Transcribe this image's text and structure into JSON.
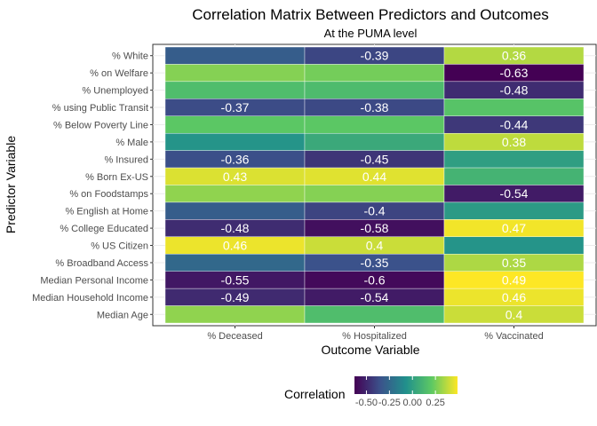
{
  "chart_data": {
    "type": "heatmap",
    "title": "Correlation Matrix Between Predictors and Outcomes",
    "subtitle": "At the PUMA level",
    "xlabel": "Outcome Variable",
    "ylabel": "Predictor Variable",
    "columns": [
      "% Deceased",
      "% Hospitalized",
      "% Vaccinated"
    ],
    "rows": [
      "% White",
      "% on Welfare",
      "% Unemployed",
      "% using Public Transit",
      "% Below Poverty Line",
      "% Male",
      "% Insured",
      "% Born Ex-US",
      "% on Foodstamps",
      "% English at Home",
      "% College Educated",
      "% US Citizen",
      "% Broadband Access",
      "Median Personal Income",
      "Median Household Income",
      "Median Age"
    ],
    "values": [
      [
        -0.3,
        -0.39,
        0.36
      ],
      [
        0.28,
        0.25,
        -0.63
      ],
      [
        0.15,
        0.14,
        -0.48
      ],
      [
        -0.37,
        -0.38,
        0.18
      ],
      [
        0.2,
        0.2,
        -0.44
      ],
      [
        -0.05,
        0.05,
        0.38
      ],
      [
        -0.36,
        -0.45,
        0.0
      ],
      [
        0.43,
        0.44,
        0.1
      ],
      [
        0.3,
        0.28,
        -0.54
      ],
      [
        -0.3,
        -0.4,
        -0.02
      ],
      [
        -0.48,
        -0.58,
        0.47
      ],
      [
        0.46,
        0.4,
        -0.05
      ],
      [
        -0.25,
        -0.35,
        0.35
      ],
      [
        -0.55,
        -0.6,
        0.49
      ],
      [
        -0.49,
        -0.54,
        0.46
      ],
      [
        0.3,
        0.15,
        0.4
      ]
    ],
    "labels": [
      [
        "",
        "-0.39",
        "0.36"
      ],
      [
        "",
        "",
        "-0.63"
      ],
      [
        "",
        "",
        "-0.48"
      ],
      [
        "-0.37",
        "-0.38",
        ""
      ],
      [
        "",
        "",
        "-0.44"
      ],
      [
        "",
        "",
        "0.38"
      ],
      [
        "-0.36",
        "-0.45",
        ""
      ],
      [
        "0.43",
        "0.44",
        ""
      ],
      [
        "",
        "",
        "-0.54"
      ],
      [
        "",
        "-0.4",
        ""
      ],
      [
        "-0.48",
        "-0.58",
        "0.47"
      ],
      [
        "0.46",
        "0.4",
        ""
      ],
      [
        "",
        "-0.35",
        "0.35"
      ],
      [
        "-0.55",
        "-0.6",
        "0.49"
      ],
      [
        "-0.49",
        "-0.54",
        "0.46"
      ],
      [
        "",
        "",
        "0.4"
      ]
    ],
    "color_range": [
      -0.63,
      0.49
    ],
    "colormap": "viridis",
    "legend": {
      "title": "Correlation",
      "ticks": [
        "-0.50",
        "-0.25",
        "0.00",
        "0.25"
      ],
      "tick_values": [
        -0.5,
        -0.25,
        0.0,
        0.25
      ],
      "position": "bottom"
    },
    "grid": true
  }
}
